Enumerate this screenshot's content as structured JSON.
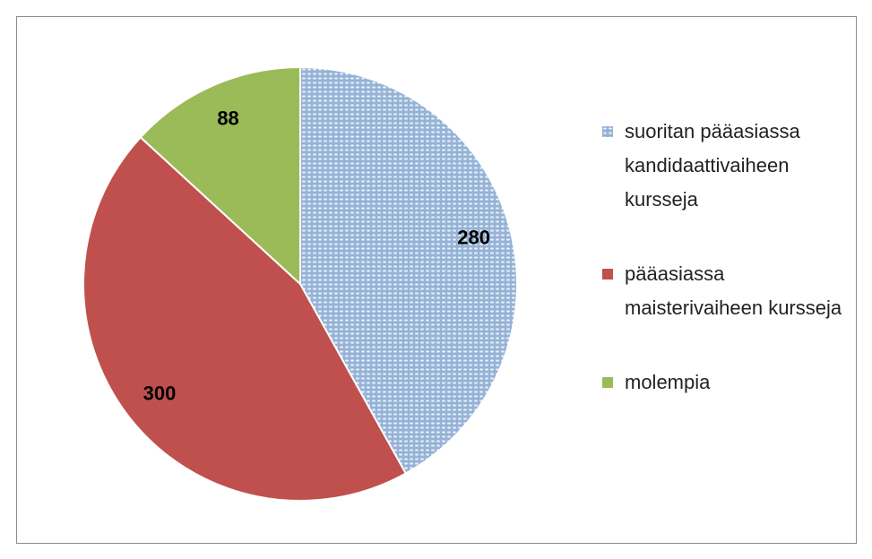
{
  "chart_data": {
    "type": "pie",
    "categories": [
      "suoritan pääasiassa kandidaattivaiheen kursseja",
      "pääasiassa maisterivaiheen kursseja",
      "molempia"
    ],
    "values": [
      280,
      300,
      88
    ],
    "colors": [
      "#95b3d7",
      "#c0504d",
      "#9bbb59"
    ],
    "patterns": [
      "dots",
      null,
      null
    ],
    "legend": "right"
  }
}
